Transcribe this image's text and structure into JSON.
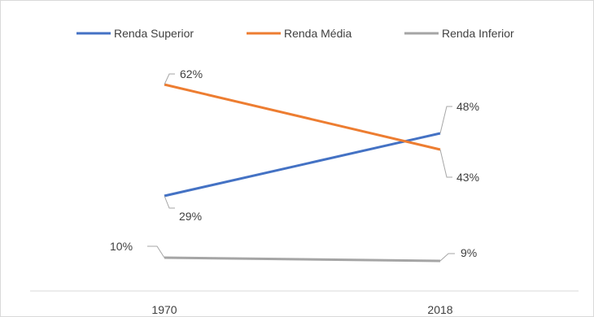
{
  "chart_data": {
    "type": "line",
    "title": "",
    "xlabel": "",
    "ylabel": "",
    "categories": [
      "1970",
      "2018"
    ],
    "series": [
      {
        "name": "Renda Superior",
        "values": [
          29,
          48
        ],
        "labels": [
          "29%",
          "48%"
        ],
        "color": "#4472c4"
      },
      {
        "name": "Renda Média",
        "values": [
          62,
          43
        ],
        "labels": [
          "62%",
          "43%"
        ],
        "color": "#ed7d31"
      },
      {
        "name": "Renda Inferior",
        "values": [
          10,
          9
        ],
        "labels": [
          "10%",
          "9%"
        ],
        "color": "#a5a5a5"
      }
    ],
    "ylim": [
      0,
      70
    ],
    "grid": false,
    "legend_position": "top"
  }
}
